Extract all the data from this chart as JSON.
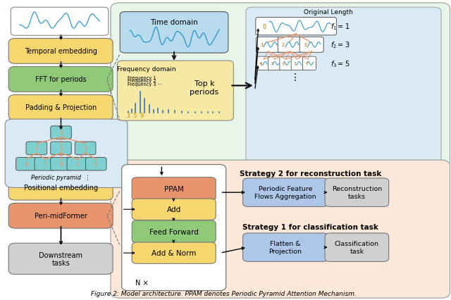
{
  "title": "Figure 2: Model architecture. PPAM denotes Periodic Pyramid Attention Mechanism.",
  "bg_color": "#ffffff",
  "left_box_colors": [
    "#f5d76e",
    "#90c978",
    "#f5d76e",
    "#f5d76e",
    "#e8956d",
    "#d0d0d0"
  ],
  "left_box_labels": [
    "Temporal embedding",
    "FFT for periods",
    "Padding & Projection",
    "Positional embedding",
    "Peri-midFormer",
    "Downstream\ntasks"
  ],
  "node_color": "#7ecfcf",
  "orange_color": "#e8956d",
  "green_panel_color": "#e8f5e9",
  "blue_panel_color": "#daeaf5",
  "salmon_panel_color": "#fce8d8",
  "time_domain_color": "#b8dcee",
  "freq_domain_color": "#f5e9a3",
  "strategy_blue": "#aec6e8",
  "strategy_gray": "#d0d0d0",
  "transformer_colors": [
    "#e8956d",
    "#f5d76e",
    "#90c978",
    "#f5d76e"
  ]
}
